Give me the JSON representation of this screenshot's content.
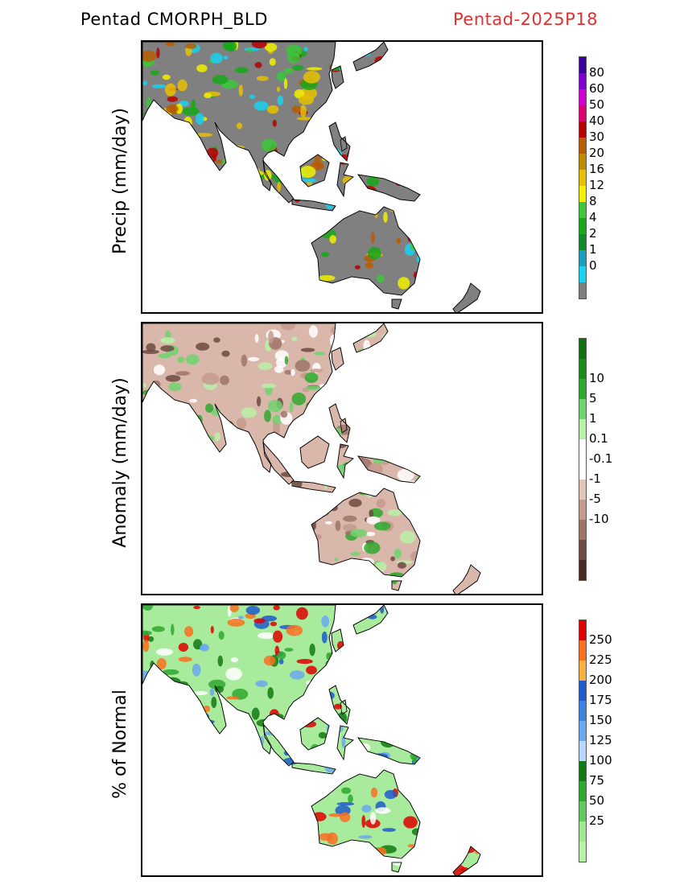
{
  "header": {
    "left_title": "Pentad CMORPH_BLD",
    "right_title": "Pentad-2025P18",
    "right_color": "#e03030"
  },
  "panels": [
    {
      "ylabel": "Precip (mm/day)",
      "land_color": "#808080",
      "colorbar": {
        "colors": [
          "#7f7f7f",
          "#19d1f0",
          "#1a9fc0",
          "#0d8a2a",
          "#18a81a",
          "#3ac83a",
          "#f0f000",
          "#e8c000",
          "#c08a00",
          "#b85c00",
          "#b80000",
          "#e00070",
          "#d000d0",
          "#8000d0",
          "#3c009a"
        ],
        "labels": [
          "0",
          "1",
          "2",
          "4",
          "8",
          "12",
          "16",
          "20",
          "30",
          "40",
          "50",
          "60",
          "80"
        ]
      },
      "fill_colors": [
        "#19d1f0",
        "#3ac83a",
        "#18a81a",
        "#f0f000",
        "#e8c000",
        "#b85c00",
        "#b80000"
      ]
    },
    {
      "ylabel": "Anomaly (mm/day)",
      "land_color": "#d9b7aa",
      "colorbar": {
        "colors": [
          "#4a2a25",
          "#6e4a42",
          "#9c7468",
          "#c49a8e",
          "#e2c4b9",
          "#ffffff",
          "#ffffff",
          "#b8f0a8",
          "#6fd46f",
          "#2fa82f",
          "#1a8a1a",
          "#117011"
        ],
        "labels": [
          "-10",
          "-5",
          "-1",
          "-0.1",
          "0.1",
          "1",
          "5",
          "10"
        ]
      },
      "fill_colors": [
        "#ffffff",
        "#b8f0a8",
        "#6fd46f",
        "#2fa82f",
        "#9c7468",
        "#6e4a42",
        "#c49a8e"
      ]
    },
    {
      "ylabel": "% of Normal",
      "land_color": "#a8eb9c",
      "colorbar": {
        "colors": [
          "#b8f0a8",
          "#a0e890",
          "#5fca5f",
          "#2fa82f",
          "#127a12",
          "#b8d8ff",
          "#6aa8f0",
          "#3c82e0",
          "#1e5ccc",
          "#f8b040",
          "#f87020",
          "#e00000"
        ],
        "labels": [
          "25",
          "50",
          "75",
          "100",
          "125",
          "150",
          "175",
          "200",
          "225",
          "250"
        ]
      },
      "fill_colors": [
        "#ffffff",
        "#2fa82f",
        "#127a12",
        "#6aa8f0",
        "#1e5ccc",
        "#e00000",
        "#f87020"
      ]
    }
  ]
}
